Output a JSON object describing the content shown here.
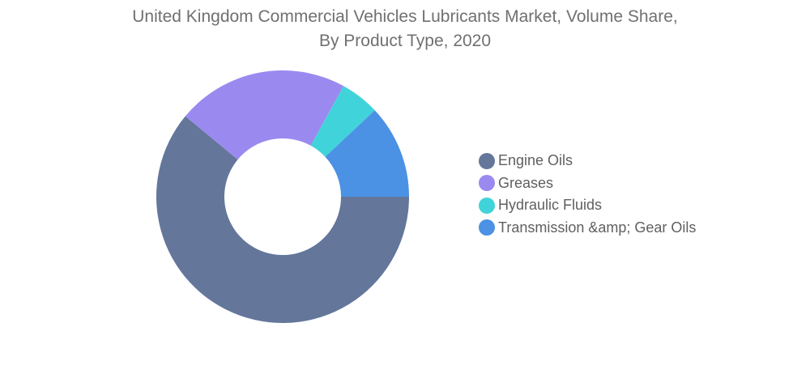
{
  "chart_data": {
    "type": "pie",
    "title_line1": "United Kingdom Commercial Vehicles Lubricants Market, Volume Share,",
    "title_line2": "By Product Type, 2020",
    "categories": [
      "Engine Oils",
      "Greases",
      "Hydraulic Fluids",
      "Transmission &amp; Gear Oils"
    ],
    "values": [
      61,
      22,
      5,
      12
    ],
    "colors": [
      "#64769a",
      "#9a8aef",
      "#41d3da",
      "#4b91e4"
    ],
    "donut": true,
    "legend_position": "right"
  }
}
